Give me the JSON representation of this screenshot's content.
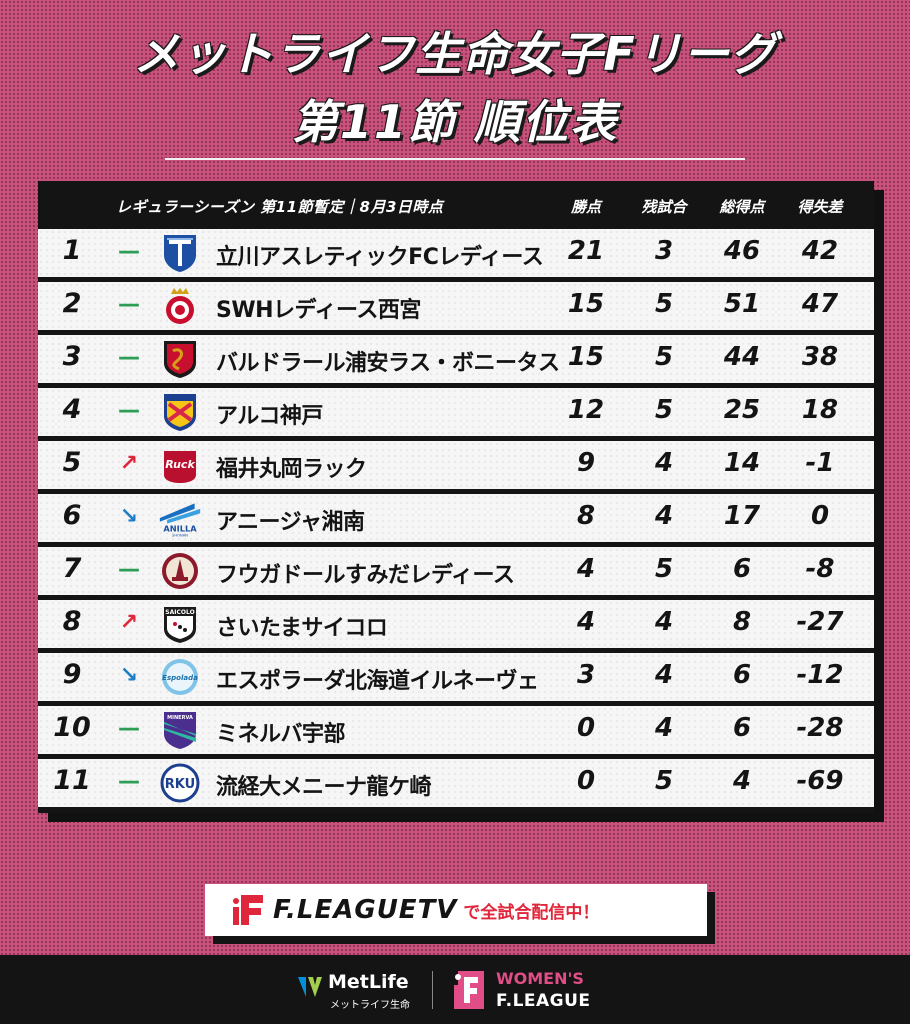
{
  "title": {
    "line1": "メットライフ生命女子Fリーグ",
    "line2": "第11節 順位表"
  },
  "header": {
    "season_label": "レギュラーシーズン 第11節暫定｜8月3日時点",
    "col_points": "勝点",
    "col_remaining": "残試合",
    "col_goals": "総得点",
    "col_diff": "得失差"
  },
  "standings": [
    {
      "rank": "1",
      "move": "—",
      "trend": "same",
      "team": "立川アスレティックFCレディース",
      "points": "21",
      "remaining": "3",
      "goals": "46",
      "diff": "42"
    },
    {
      "rank": "2",
      "move": "—",
      "trend": "same",
      "team": "SWHレディース西宮",
      "points": "15",
      "remaining": "5",
      "goals": "51",
      "diff": "47"
    },
    {
      "rank": "3",
      "move": "—",
      "trend": "same",
      "team": "バルドラール浦安ラス・ボニータス",
      "points": "15",
      "remaining": "5",
      "goals": "44",
      "diff": "38"
    },
    {
      "rank": "4",
      "move": "—",
      "trend": "same",
      "team": "アルコ神戸",
      "points": "12",
      "remaining": "5",
      "goals": "25",
      "diff": "18"
    },
    {
      "rank": "5",
      "move": "↗",
      "trend": "up",
      "team": "福井丸岡ラック",
      "points": "9",
      "remaining": "4",
      "goals": "14",
      "diff": "-1"
    },
    {
      "rank": "6",
      "move": "↘",
      "trend": "down",
      "team": "アニージャ湘南",
      "points": "8",
      "remaining": "4",
      "goals": "17",
      "diff": "0"
    },
    {
      "rank": "7",
      "move": "—",
      "trend": "same",
      "team": "フウガドールすみだレディース",
      "points": "4",
      "remaining": "5",
      "goals": "6",
      "diff": "-8"
    },
    {
      "rank": "8",
      "move": "↗",
      "trend": "up",
      "team": "さいたまサイコロ",
      "points": "4",
      "remaining": "4",
      "goals": "8",
      "diff": "-27"
    },
    {
      "rank": "9",
      "move": "↘",
      "trend": "down",
      "team": "エスポラーダ北海道イルネーヴェ",
      "points": "3",
      "remaining": "4",
      "goals": "6",
      "diff": "-12"
    },
    {
      "rank": "10",
      "move": "—",
      "trend": "same",
      "team": "ミネルバ宇部",
      "points": "0",
      "remaining": "4",
      "goals": "6",
      "diff": "-28"
    },
    {
      "rank": "11",
      "move": "—",
      "trend": "same",
      "team": "流経大メニーナ龍ケ崎",
      "points": "0",
      "remaining": "5",
      "goals": "4",
      "diff": "-69"
    }
  ],
  "logos": {
    "anilla_text": "ANILLA",
    "anilla_sub": "SHONAN",
    "saicolo_text": "SAICOLO",
    "rku_text": "RKU",
    "minerva_text": "MINERVA",
    "espolada_text": "Espolada",
    "ruck_text": "Ruck"
  },
  "banner": {
    "tv_text": "F.LEAGUETV",
    "tv_sub": "で全試合配信中！"
  },
  "footer": {
    "metlife_name": "MetLife",
    "metlife_sub": "メットライフ生命",
    "womens_line1": "WOMEN'S",
    "womens_line2": "F.LEAGUE"
  },
  "colors": {
    "background": "#c9527d",
    "dark": "#141414",
    "up": "#e0263a",
    "down": "#1e7fc6",
    "same": "#2e9e56"
  }
}
